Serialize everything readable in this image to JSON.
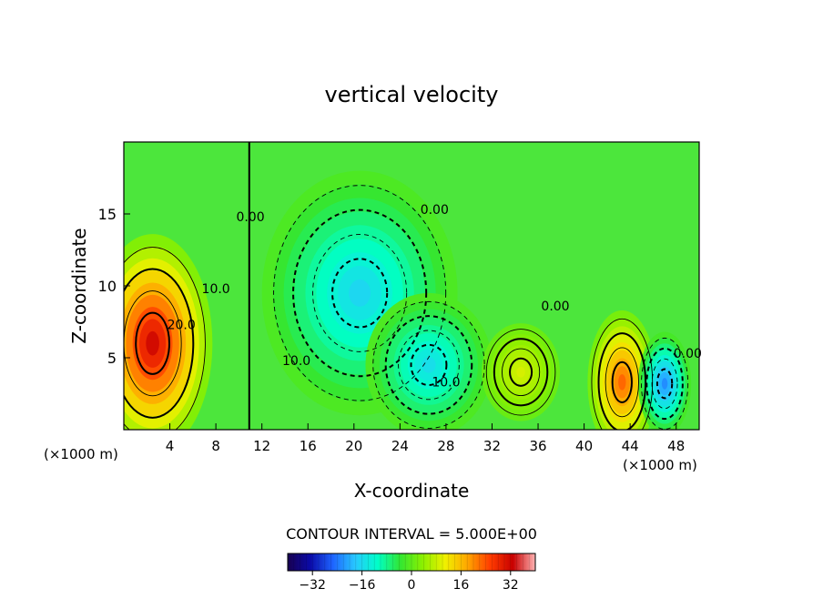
{
  "chart_data": {
    "type": "heatmap",
    "title": "vertical velocity",
    "xlabel": "X-coordinate",
    "ylabel": "Z-coordinate",
    "x_unit": "(×1000 m)",
    "z_unit": "(×1000 m)",
    "xlim": [
      0,
      50
    ],
    "ylim": [
      0,
      20
    ],
    "x_ticks": [
      4,
      8,
      12,
      16,
      20,
      24,
      28,
      32,
      36,
      40,
      44,
      48
    ],
    "y_ticks": [
      5,
      10,
      15
    ],
    "contour_interval_label": "CONTOUR INTERVAL = 5.000E+00",
    "colorbar": {
      "min": -40,
      "max": 40,
      "ticks": [
        -32,
        -16,
        0,
        16,
        32
      ],
      "stops": [
        "#180050",
        "#0a0aa8",
        "#1e64ff",
        "#28c8ff",
        "#00ffc8",
        "#32e632",
        "#8cf000",
        "#f0f000",
        "#ffa500",
        "#ff3c00",
        "#c80000",
        "#ffb4b4"
      ]
    },
    "features": [
      {
        "x": 2.5,
        "z": 6.0,
        "value": 35
      },
      {
        "x": 43.3,
        "z": 3.3,
        "value": 25
      },
      {
        "x": 47.0,
        "z": 3.2,
        "value": -25
      },
      {
        "x": 20.5,
        "z": 9.5,
        "value": -18
      },
      {
        "x": 26.5,
        "z": 4.5,
        "value": -17
      },
      {
        "x": 34.5,
        "z": 4.0,
        "value": 10
      }
    ],
    "contour_labels": [
      {
        "text": "0.00",
        "x": 11.0,
        "z": 14.5
      },
      {
        "text": "10.0",
        "x": 8.0,
        "z": 9.5
      },
      {
        "text": "20.0",
        "x": 5.0,
        "z": 7.0
      },
      {
        "text": "0.00",
        "x": 27.0,
        "z": 15.0
      },
      {
        "text": "10.0",
        "x": 15.0,
        "z": 4.5
      },
      {
        "text": "10.0",
        "x": 28.0,
        "z": 3.0
      },
      {
        "text": "0.00",
        "x": 37.5,
        "z": 8.3
      },
      {
        "text": "0.00",
        "x": 49.0,
        "z": 5.0
      }
    ]
  }
}
